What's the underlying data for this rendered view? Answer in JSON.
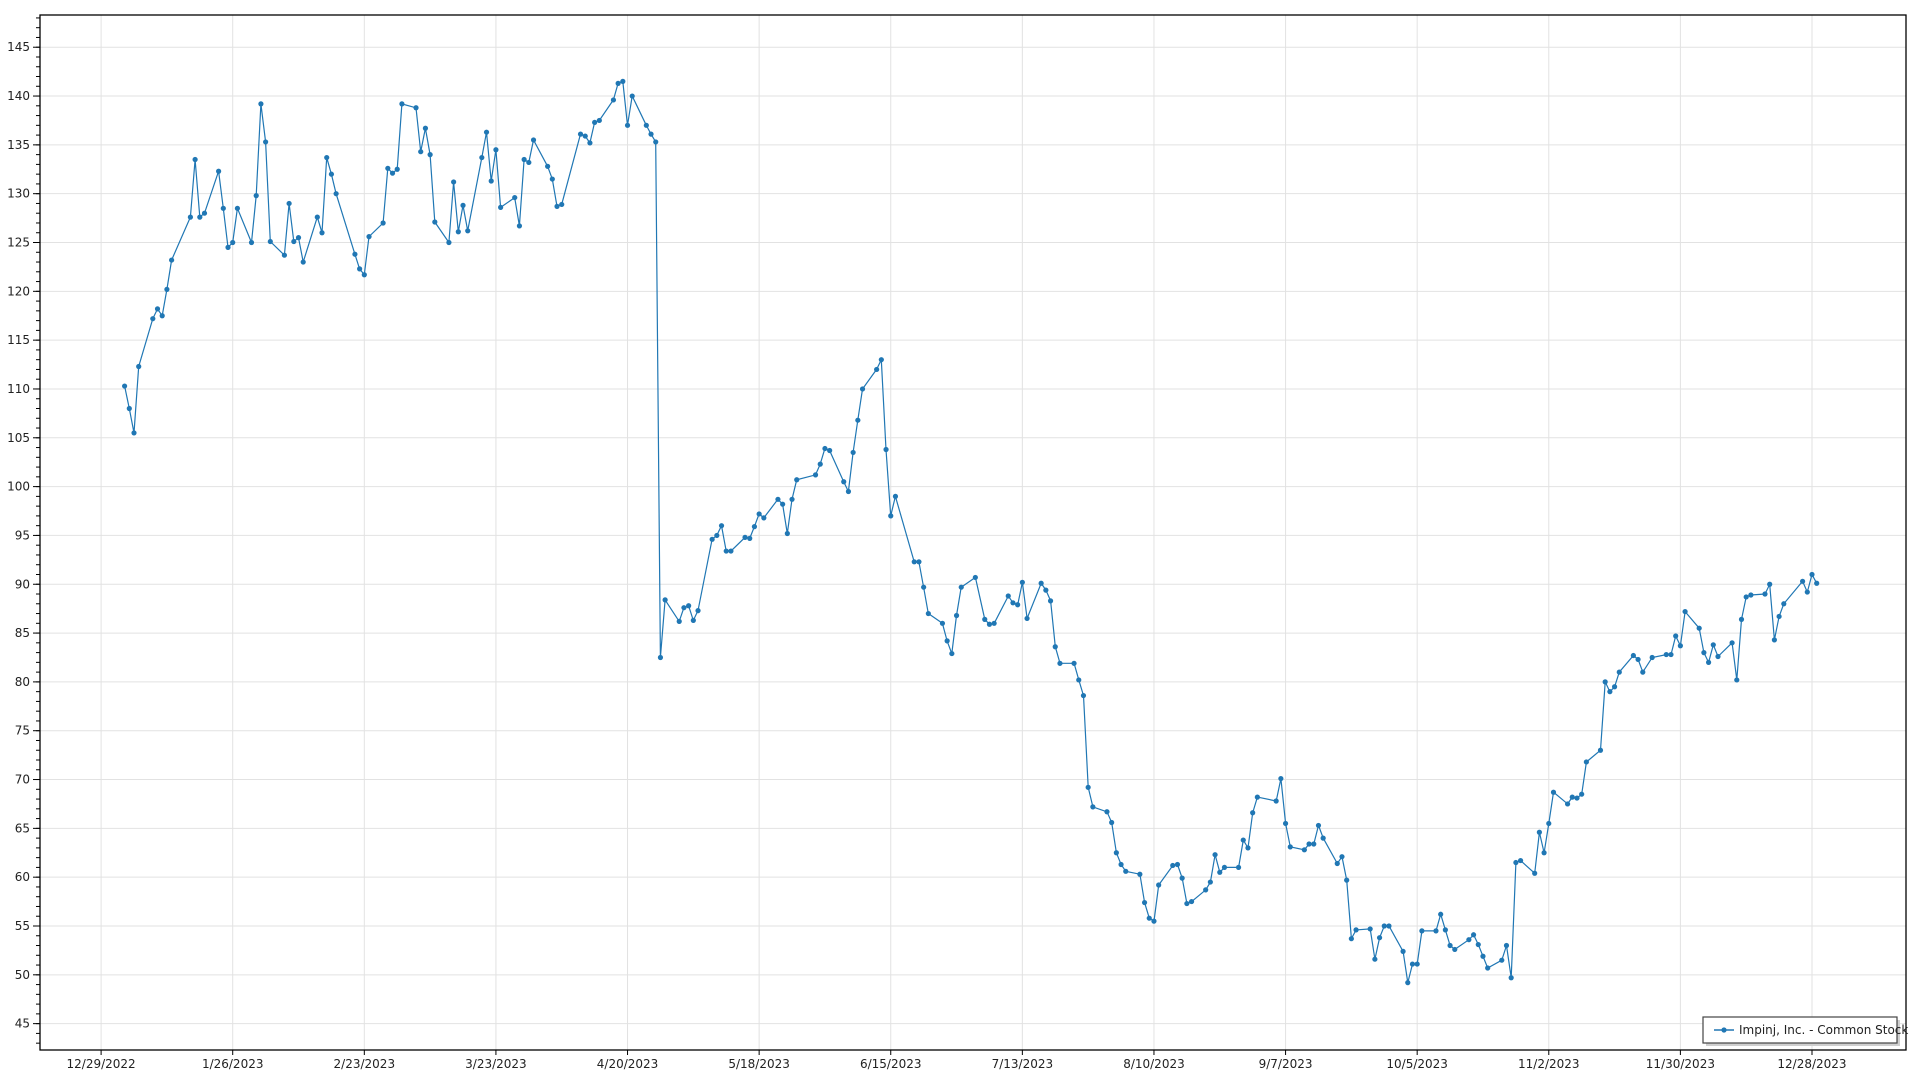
{
  "chart_data": {
    "type": "line",
    "title": "",
    "xlabel": "",
    "ylabel": "",
    "ylim": [
      42.3,
      148.3
    ],
    "xlim": [
      "2022-12-16",
      "2024-01-17"
    ],
    "grid": true,
    "legend_placement": "bottom-right",
    "line_color": "#2077b4",
    "y_ticks": [
      45,
      50,
      55,
      60,
      65,
      70,
      75,
      80,
      85,
      90,
      95,
      100,
      105,
      110,
      115,
      120,
      125,
      130,
      135,
      140,
      145
    ],
    "x_ticks": [
      {
        "date": "2022-12-29",
        "label": "12/29/2022"
      },
      {
        "date": "2023-01-26",
        "label": "1/26/2023"
      },
      {
        "date": "2023-02-23",
        "label": "2/23/2023"
      },
      {
        "date": "2023-03-23",
        "label": "3/23/2023"
      },
      {
        "date": "2023-04-20",
        "label": "4/20/2023"
      },
      {
        "date": "2023-05-18",
        "label": "5/18/2023"
      },
      {
        "date": "2023-06-15",
        "label": "6/15/2023"
      },
      {
        "date": "2023-07-13",
        "label": "7/13/2023"
      },
      {
        "date": "2023-08-10",
        "label": "8/10/2023"
      },
      {
        "date": "2023-09-07",
        "label": "9/7/2023"
      },
      {
        "date": "2023-10-05",
        "label": "10/5/2023"
      },
      {
        "date": "2023-11-02",
        "label": "11/2/2023"
      },
      {
        "date": "2023-11-30",
        "label": "11/30/2023"
      },
      {
        "date": "2023-12-28",
        "label": "12/28/2023"
      }
    ],
    "series": [
      {
        "name": "Impinj, Inc. - Common Stock",
        "points": [
          [
            "2023-01-03",
            110.3
          ],
          [
            "2023-01-04",
            108
          ],
          [
            "2023-01-05",
            105.5
          ],
          [
            "2023-01-06",
            112.3
          ],
          [
            "2023-01-09",
            117.2
          ],
          [
            "2023-01-10",
            118.2
          ],
          [
            "2023-01-11",
            117.5
          ],
          [
            "2023-01-12",
            120.2
          ],
          [
            "2023-01-13",
            123.2
          ],
          [
            "2023-01-17",
            127.6
          ],
          [
            "2023-01-18",
            133.5
          ],
          [
            "2023-01-19",
            127.6
          ],
          [
            "2023-01-20",
            128
          ],
          [
            "2023-01-23",
            132.3
          ],
          [
            "2023-01-24",
            128.5
          ],
          [
            "2023-01-25",
            124.5
          ],
          [
            "2023-01-26",
            125
          ],
          [
            "2023-01-27",
            128.5
          ],
          [
            "2023-01-30",
            125
          ],
          [
            "2023-01-31",
            129.8
          ],
          [
            "2023-02-01",
            139.2
          ],
          [
            "2023-02-02",
            135.3
          ],
          [
            "2023-02-03",
            125.1
          ],
          [
            "2023-02-06",
            123.7
          ],
          [
            "2023-02-07",
            129
          ],
          [
            "2023-02-08",
            125.1
          ],
          [
            "2023-02-09",
            125.5
          ],
          [
            "2023-02-10",
            123
          ],
          [
            "2023-02-13",
            127.6
          ],
          [
            "2023-02-14",
            126
          ],
          [
            "2023-02-15",
            133.7
          ],
          [
            "2023-02-16",
            132
          ],
          [
            "2023-02-17",
            130
          ],
          [
            "2023-02-21",
            123.8
          ],
          [
            "2023-02-22",
            122.3
          ],
          [
            "2023-02-23",
            121.7
          ],
          [
            "2023-02-24",
            125.6
          ],
          [
            "2023-02-27",
            127
          ],
          [
            "2023-02-28",
            132.6
          ],
          [
            "2023-03-01",
            132.1
          ],
          [
            "2023-03-02",
            132.5
          ],
          [
            "2023-03-03",
            139.2
          ],
          [
            "2023-03-06",
            138.8
          ],
          [
            "2023-03-07",
            134.3
          ],
          [
            "2023-03-08",
            136.7
          ],
          [
            "2023-03-09",
            134
          ],
          [
            "2023-03-10",
            127.1
          ],
          [
            "2023-03-13",
            125
          ],
          [
            "2023-03-14",
            131.2
          ],
          [
            "2023-03-15",
            126.1
          ],
          [
            "2023-03-16",
            128.8
          ],
          [
            "2023-03-17",
            126.2
          ],
          [
            "2023-03-20",
            133.7
          ],
          [
            "2023-03-21",
            136.3
          ],
          [
            "2023-03-22",
            131.3
          ],
          [
            "2023-03-23",
            134.5
          ],
          [
            "2023-03-24",
            128.6
          ],
          [
            "2023-03-27",
            129.6
          ],
          [
            "2023-03-28",
            126.7
          ],
          [
            "2023-03-29",
            133.5
          ],
          [
            "2023-03-30",
            133.2
          ],
          [
            "2023-03-31",
            135.5
          ],
          [
            "2023-04-03",
            132.8
          ],
          [
            "2023-04-04",
            131.5
          ],
          [
            "2023-04-05",
            128.7
          ],
          [
            "2023-04-06",
            128.9
          ],
          [
            "2023-04-10",
            136.1
          ],
          [
            "2023-04-11",
            135.9
          ],
          [
            "2023-04-12",
            135.2
          ],
          [
            "2023-04-13",
            137.3
          ],
          [
            "2023-04-14",
            137.5
          ],
          [
            "2023-04-17",
            139.6
          ],
          [
            "2023-04-18",
            141.3
          ],
          [
            "2023-04-19",
            141.5
          ],
          [
            "2023-04-20",
            137
          ],
          [
            "2023-04-21",
            140
          ],
          [
            "2023-04-24",
            137
          ],
          [
            "2023-04-25",
            136.1
          ],
          [
            "2023-04-26",
            135.3
          ],
          [
            "2023-04-27",
            82.5
          ],
          [
            "2023-04-28",
            88.4
          ],
          [
            "2023-05-01",
            86.2
          ],
          [
            "2023-05-02",
            87.6
          ],
          [
            "2023-05-03",
            87.8
          ],
          [
            "2023-05-04",
            86.3
          ],
          [
            "2023-05-05",
            87.3
          ],
          [
            "2023-05-08",
            94.6
          ],
          [
            "2023-05-09",
            95
          ],
          [
            "2023-05-10",
            96
          ],
          [
            "2023-05-11",
            93.4
          ],
          [
            "2023-05-12",
            93.4
          ],
          [
            "2023-05-15",
            94.8
          ],
          [
            "2023-05-16",
            94.7
          ],
          [
            "2023-05-17",
            95.9
          ],
          [
            "2023-05-18",
            97.2
          ],
          [
            "2023-05-19",
            96.8
          ],
          [
            "2023-05-22",
            98.7
          ],
          [
            "2023-05-23",
            98.2
          ],
          [
            "2023-05-24",
            95.2
          ],
          [
            "2023-05-25",
            98.7
          ],
          [
            "2023-05-26",
            100.7
          ],
          [
            "2023-05-30",
            101.2
          ],
          [
            "2023-05-31",
            102.3
          ],
          [
            "2023-06-01",
            103.9
          ],
          [
            "2023-06-02",
            103.7
          ],
          [
            "2023-06-05",
            100.5
          ],
          [
            "2023-06-06",
            99.5
          ],
          [
            "2023-06-07",
            103.5
          ],
          [
            "2023-06-08",
            106.8
          ],
          [
            "2023-06-09",
            110
          ],
          [
            "2023-06-12",
            112
          ],
          [
            "2023-06-13",
            113
          ],
          [
            "2023-06-14",
            103.8
          ],
          [
            "2023-06-15",
            97
          ],
          [
            "2023-06-16",
            99
          ],
          [
            "2023-06-20",
            92.3
          ],
          [
            "2023-06-21",
            92.3
          ],
          [
            "2023-06-22",
            89.7
          ],
          [
            "2023-06-23",
            87
          ],
          [
            "2023-06-26",
            86
          ],
          [
            "2023-06-27",
            84.2
          ],
          [
            "2023-06-28",
            82.9
          ],
          [
            "2023-06-29",
            86.8
          ],
          [
            "2023-06-30",
            89.7
          ],
          [
            "2023-07-03",
            90.7
          ],
          [
            "2023-07-05",
            86.4
          ],
          [
            "2023-07-06",
            85.9
          ],
          [
            "2023-07-07",
            86
          ],
          [
            "2023-07-10",
            88.8
          ],
          [
            "2023-07-11",
            88.1
          ],
          [
            "2023-07-12",
            87.9
          ],
          [
            "2023-07-13",
            90.2
          ],
          [
            "2023-07-14",
            86.5
          ],
          [
            "2023-07-17",
            90.1
          ],
          [
            "2023-07-18",
            89.4
          ],
          [
            "2023-07-19",
            88.3
          ],
          [
            "2023-07-20",
            83.6
          ],
          [
            "2023-07-21",
            81.9
          ],
          [
            "2023-07-24",
            81.9
          ],
          [
            "2023-07-25",
            80.2
          ],
          [
            "2023-07-26",
            78.6
          ],
          [
            "2023-07-27",
            69.2
          ],
          [
            "2023-07-28",
            67.2
          ],
          [
            "2023-07-31",
            66.7
          ],
          [
            "2023-08-01",
            65.6
          ],
          [
            "2023-08-02",
            62.5
          ],
          [
            "2023-08-03",
            61.3
          ],
          [
            "2023-08-04",
            60.6
          ],
          [
            "2023-08-07",
            60.3
          ],
          [
            "2023-08-08",
            57.4
          ],
          [
            "2023-08-09",
            55.8
          ],
          [
            "2023-08-10",
            55.5
          ],
          [
            "2023-08-11",
            59.2
          ],
          [
            "2023-08-14",
            61.2
          ],
          [
            "2023-08-15",
            61.3
          ],
          [
            "2023-08-16",
            59.9
          ],
          [
            "2023-08-17",
            57.3
          ],
          [
            "2023-08-18",
            57.5
          ],
          [
            "2023-08-21",
            58.7
          ],
          [
            "2023-08-22",
            59.5
          ],
          [
            "2023-08-23",
            62.3
          ],
          [
            "2023-08-24",
            60.5
          ],
          [
            "2023-08-25",
            61
          ],
          [
            "2023-08-28",
            61
          ],
          [
            "2023-08-29",
            63.8
          ],
          [
            "2023-08-30",
            63
          ],
          [
            "2023-08-31",
            66.6
          ],
          [
            "2023-09-01",
            68.2
          ],
          [
            "2023-09-05",
            67.8
          ],
          [
            "2023-09-06",
            70.1
          ],
          [
            "2023-09-07",
            65.5
          ],
          [
            "2023-09-08",
            63.1
          ],
          [
            "2023-09-11",
            62.8
          ],
          [
            "2023-09-12",
            63.4
          ],
          [
            "2023-09-13",
            63.4
          ],
          [
            "2023-09-14",
            65.3
          ],
          [
            "2023-09-15",
            64
          ],
          [
            "2023-09-18",
            61.4
          ],
          [
            "2023-09-19",
            62.1
          ],
          [
            "2023-09-20",
            59.7
          ],
          [
            "2023-09-21",
            53.7
          ],
          [
            "2023-09-22",
            54.6
          ],
          [
            "2023-09-25",
            54.7
          ],
          [
            "2023-09-26",
            51.6
          ],
          [
            "2023-09-27",
            53.8
          ],
          [
            "2023-09-28",
            55
          ],
          [
            "2023-09-29",
            55
          ],
          [
            "2023-10-02",
            52.4
          ],
          [
            "2023-10-03",
            49.2
          ],
          [
            "2023-10-04",
            51.1
          ],
          [
            "2023-10-05",
            51.1
          ],
          [
            "2023-10-06",
            54.5
          ],
          [
            "2023-10-09",
            54.5
          ],
          [
            "2023-10-10",
            56.2
          ],
          [
            "2023-10-11",
            54.6
          ],
          [
            "2023-10-12",
            53
          ],
          [
            "2023-10-13",
            52.6
          ],
          [
            "2023-10-16",
            53.6
          ],
          [
            "2023-10-17",
            54.1
          ],
          [
            "2023-10-18",
            53.1
          ],
          [
            "2023-10-19",
            51.9
          ],
          [
            "2023-10-20",
            50.7
          ],
          [
            "2023-10-23",
            51.5
          ],
          [
            "2023-10-24",
            53
          ],
          [
            "2023-10-25",
            49.7
          ],
          [
            "2023-10-26",
            61.5
          ],
          [
            "2023-10-27",
            61.7
          ],
          [
            "2023-10-30",
            60.4
          ],
          [
            "2023-10-31",
            64.6
          ],
          [
            "2023-11-01",
            62.5
          ],
          [
            "2023-11-02",
            65.5
          ],
          [
            "2023-11-03",
            68.7
          ],
          [
            "2023-11-06",
            67.5
          ],
          [
            "2023-11-07",
            68.2
          ],
          [
            "2023-11-08",
            68.1
          ],
          [
            "2023-11-09",
            68.5
          ],
          [
            "2023-11-10",
            71.8
          ],
          [
            "2023-11-13",
            73
          ],
          [
            "2023-11-14",
            80
          ],
          [
            "2023-11-15",
            79
          ],
          [
            "2023-11-16",
            79.5
          ],
          [
            "2023-11-17",
            81
          ],
          [
            "2023-11-20",
            82.7
          ],
          [
            "2023-11-21",
            82.3
          ],
          [
            "2023-11-22",
            81
          ],
          [
            "2023-11-24",
            82.5
          ],
          [
            "2023-11-27",
            82.8
          ],
          [
            "2023-11-28",
            82.8
          ],
          [
            "2023-11-29",
            84.7
          ],
          [
            "2023-11-30",
            83.7
          ],
          [
            "2023-12-01",
            87.2
          ],
          [
            "2023-12-04",
            85.5
          ],
          [
            "2023-12-05",
            83
          ],
          [
            "2023-12-06",
            82
          ],
          [
            "2023-12-07",
            83.8
          ],
          [
            "2023-12-08",
            82.6
          ],
          [
            "2023-12-11",
            84
          ],
          [
            "2023-12-12",
            80.2
          ],
          [
            "2023-12-13",
            86.4
          ],
          [
            "2023-12-14",
            88.7
          ],
          [
            "2023-12-15",
            88.9
          ],
          [
            "2023-12-18",
            89
          ],
          [
            "2023-12-19",
            90
          ],
          [
            "2023-12-20",
            84.3
          ],
          [
            "2023-12-21",
            86.7
          ],
          [
            "2023-12-22",
            88
          ],
          [
            "2023-12-26",
            90.3
          ],
          [
            "2023-12-27",
            89.2
          ],
          [
            "2023-12-28",
            91
          ],
          [
            "2023-12-29",
            90.1
          ]
        ]
      }
    ]
  }
}
